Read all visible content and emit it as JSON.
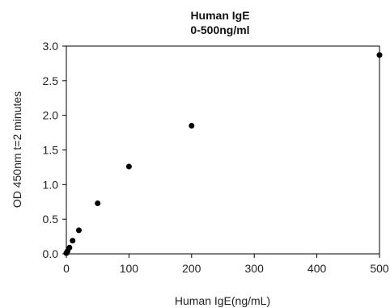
{
  "chart_data": {
    "type": "scatter",
    "title": "Human IgE",
    "subtitle": "0-500ng/ml",
    "xlabel": "Human IgE(ng/mL)",
    "ylabel": "OD 450nm t=2 minutes",
    "xlim": [
      0,
      500
    ],
    "ylim": [
      0,
      3.0
    ],
    "xticks": [
      0,
      100,
      200,
      300,
      400,
      500
    ],
    "xtick_labels": [
      "0",
      "100",
      "200",
      "300",
      "400",
      "500"
    ],
    "yticks": [
      0,
      0.5,
      1.0,
      1.5,
      2.0,
      2.5,
      3.0
    ],
    "ytick_labels": [
      "0.0",
      "0.5",
      "1.0",
      "1.5",
      "2.0",
      "2.5",
      "3.0"
    ],
    "grid": false,
    "legend": "none",
    "marker_color": "#000000",
    "x": [
      0,
      1,
      2,
      5,
      10,
      20,
      50,
      100,
      200,
      500
    ],
    "y": [
      0.01,
      0.02,
      0.04,
      0.09,
      0.19,
      0.34,
      0.73,
      1.26,
      1.85,
      2.87
    ]
  }
}
